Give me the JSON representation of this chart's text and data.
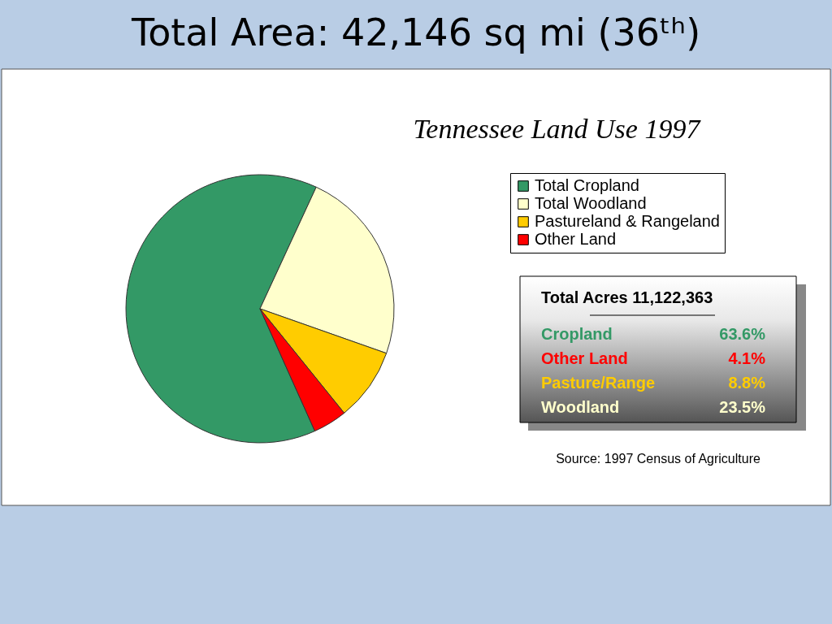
{
  "chart_data": {
    "type": "pie",
    "title": "Total Area: 42,146 sq mi (36ᵗʰ)",
    "subtitle": "Tennessee Land Use 1997",
    "categories": [
      "Total Cropland",
      "Total Woodland",
      "Pastureland & Rangeland",
      "Other Land"
    ],
    "values": [
      63.6,
      23.5,
      8.8,
      4.1
    ],
    "colors": [
      "#339966",
      "#ffffcc",
      "#ffcc00",
      "#ff0000"
    ],
    "legend": "top right",
    "annotations": [
      "Total Acres  11,122,363",
      "Cropland",
      "63.6%",
      "Other Land",
      "4.1%",
      "Pasture/Range",
      "8.8%",
      "Woodland",
      "23.5%",
      "Source: 1997 Census of Agriculture"
    ]
  }
}
